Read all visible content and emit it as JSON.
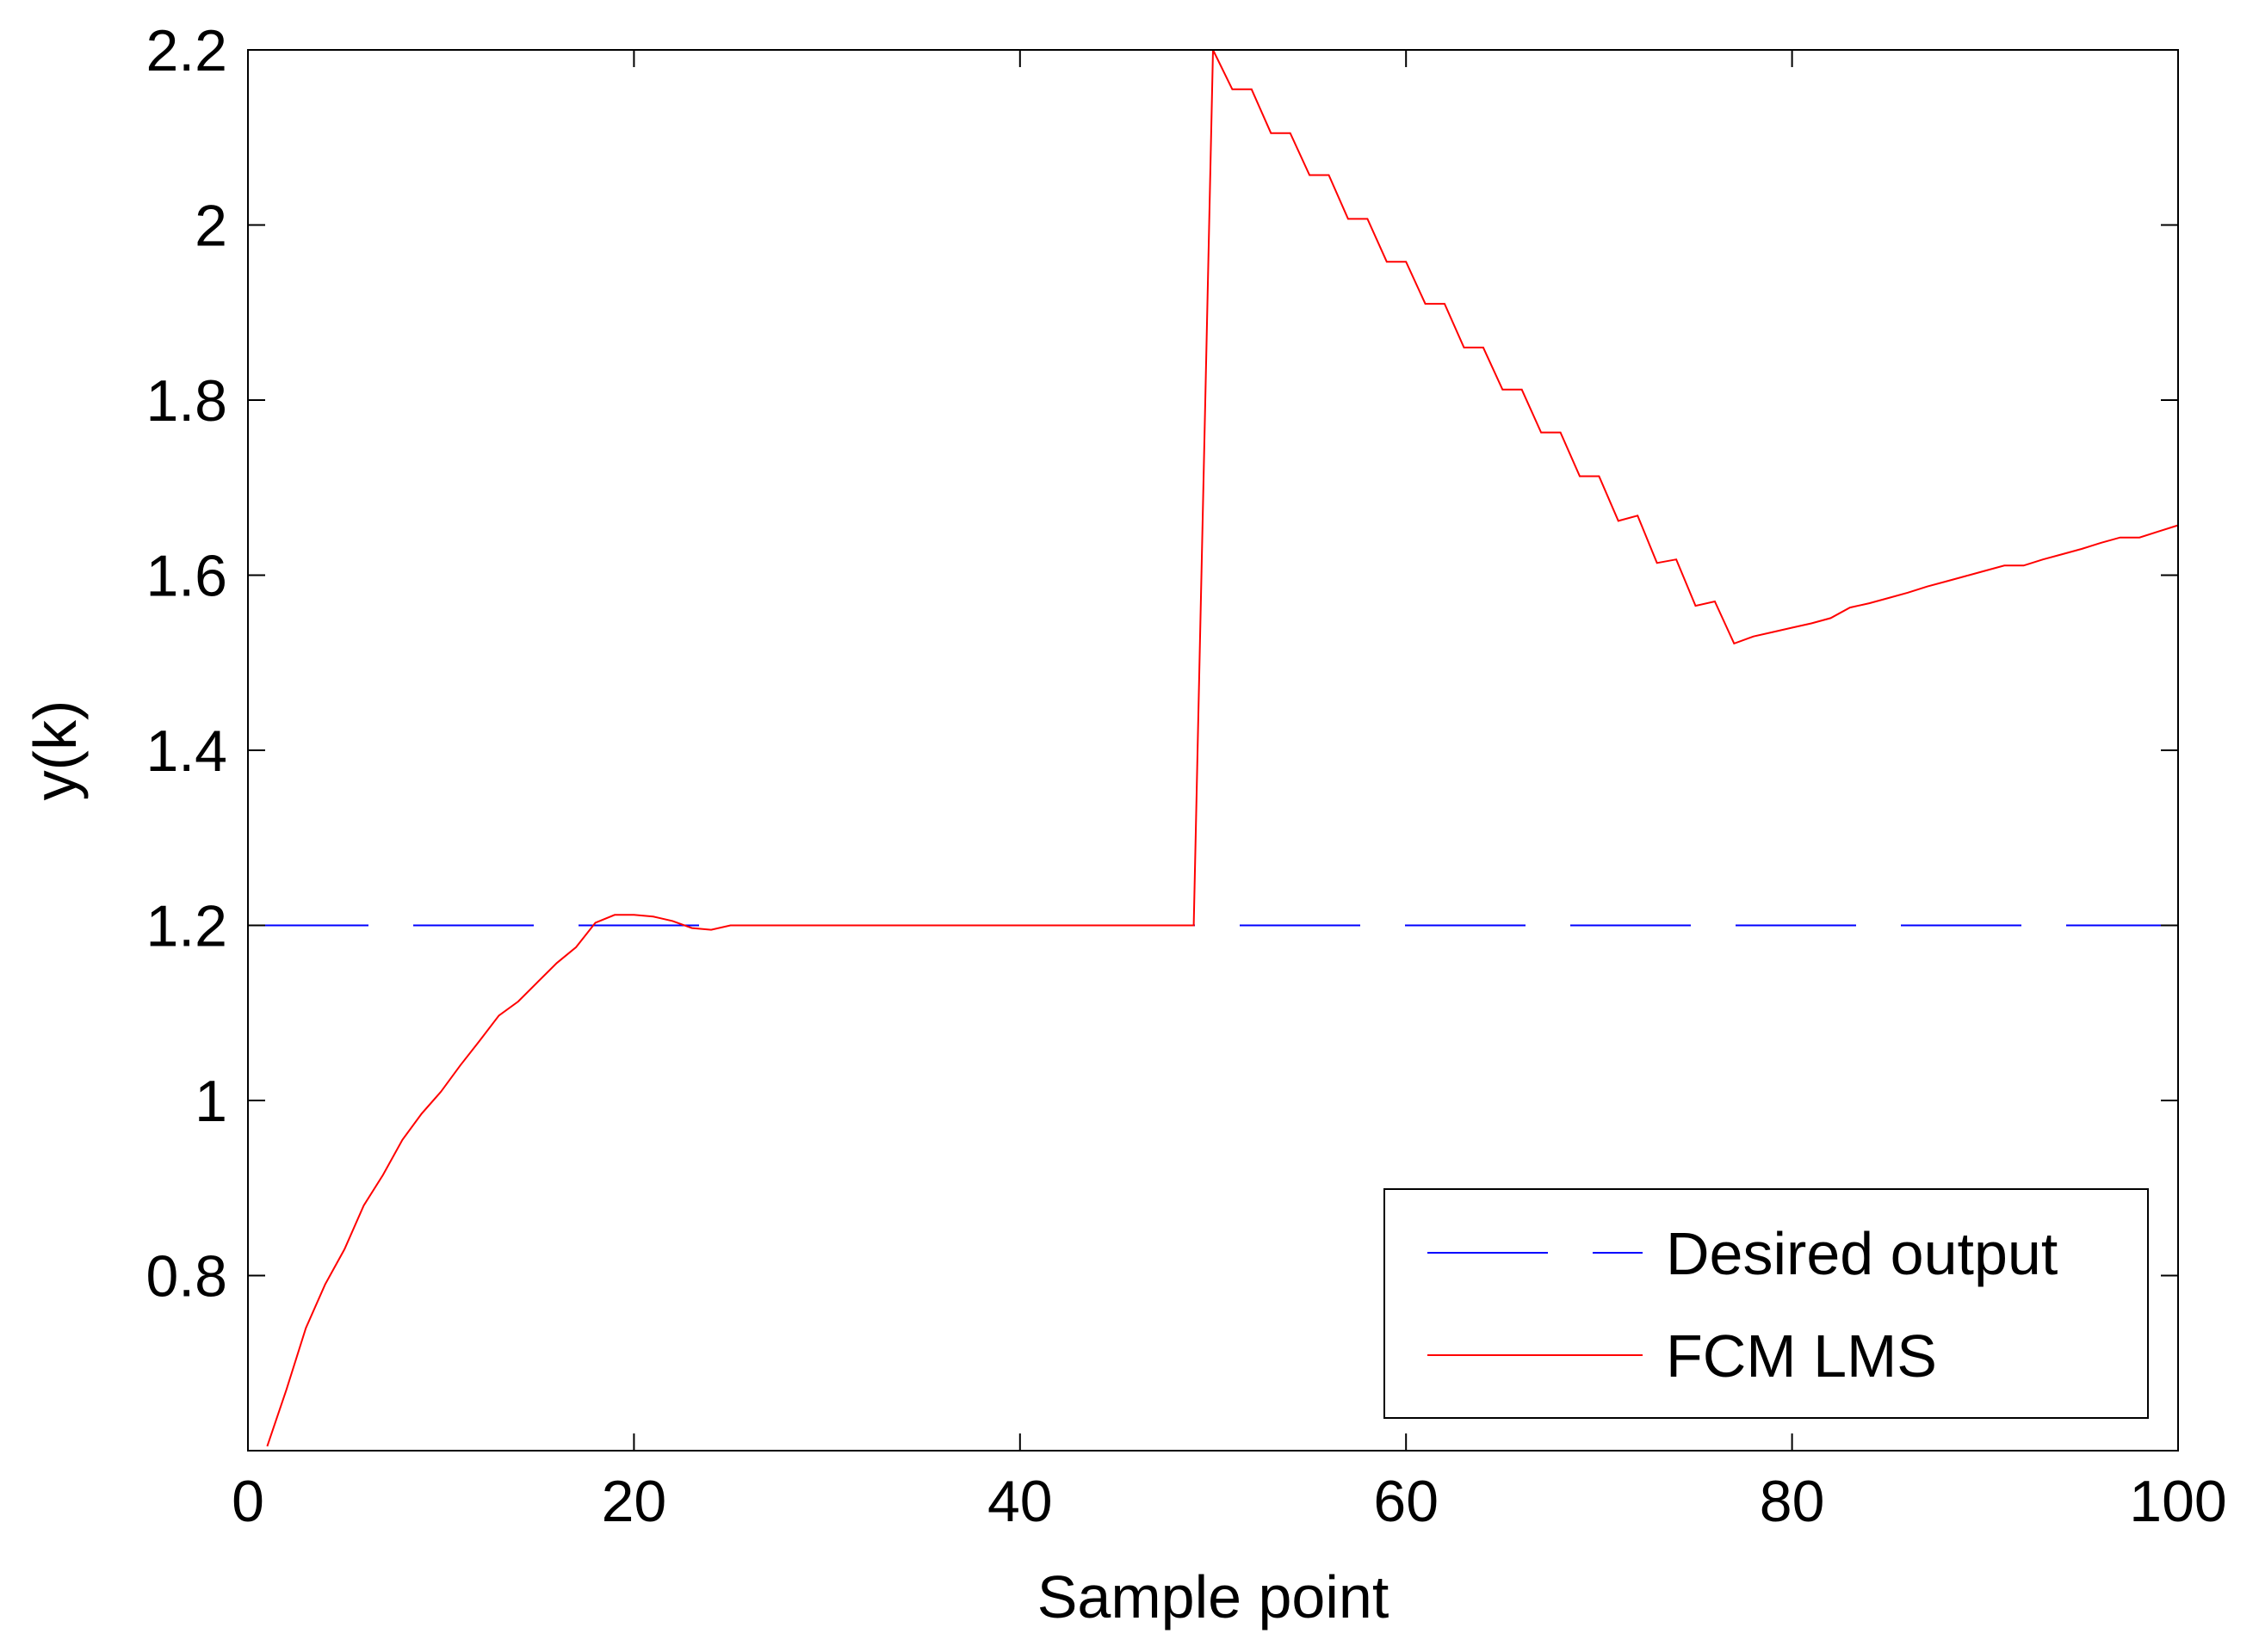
{
  "chart_data": {
    "type": "line",
    "xlabel": "Sample point",
    "ylabel": "y(k)",
    "xlim": [
      0,
      100
    ],
    "ylim": [
      0.6,
      2.2
    ],
    "xticks": [
      0,
      20,
      40,
      60,
      80,
      100
    ],
    "yticks": [
      0.8,
      1,
      1.2,
      1.4,
      1.6,
      1.8,
      2,
      2.2
    ],
    "xtick_labels": [
      "0",
      "20",
      "40",
      "60",
      "80",
      "100"
    ],
    "ytick_labels": [
      "0.8",
      "1",
      "1.2",
      "1.4",
      "1.6",
      "1.8",
      "2",
      "2.2"
    ],
    "grid": false,
    "legend_position": "bottom-right",
    "series": [
      {
        "name": "Desired output",
        "color": "#0000ff",
        "style": "dashed",
        "x": [
          0,
          100
        ],
        "y": [
          1.2,
          1.2
        ]
      },
      {
        "name": "FCM LMS",
        "color": "#ff0000",
        "style": "solid",
        "x": [
          1,
          2,
          3,
          4,
          5,
          6,
          7,
          8,
          9,
          10,
          11,
          12,
          13,
          14,
          15,
          16,
          17,
          18,
          19,
          20,
          21,
          22,
          23,
          24,
          25,
          26,
          27,
          28,
          29,
          30,
          31,
          32,
          33,
          34,
          35,
          36,
          37,
          38,
          39,
          40,
          41,
          42,
          43,
          44,
          45,
          46,
          47,
          48,
          49,
          50,
          51,
          52,
          53,
          54,
          55,
          56,
          57,
          58,
          59,
          60,
          61,
          62,
          63,
          64,
          65,
          66,
          67,
          68,
          69,
          70,
          71,
          72,
          73,
          74,
          75,
          76,
          77,
          78,
          79,
          80,
          81,
          82,
          83,
          84,
          85,
          86,
          87,
          88,
          89,
          90,
          91,
          92,
          93,
          94,
          95,
          96,
          97,
          98,
          99,
          100
        ],
        "y": [
          0.605,
          0.67,
          0.74,
          0.79,
          0.83,
          0.88,
          0.915,
          0.955,
          0.985,
          1.01,
          1.04,
          1.068,
          1.097,
          1.113,
          1.135,
          1.157,
          1.175,
          1.203,
          1.212,
          1.212,
          1.21,
          1.205,
          1.197,
          1.195,
          1.2,
          1.2,
          1.2,
          1.2,
          1.2,
          1.2,
          1.2,
          1.2,
          1.2,
          1.2,
          1.2,
          1.2,
          1.2,
          1.2,
          1.2,
          1.2,
          1.2,
          1.2,
          1.2,
          1.2,
          1.2,
          1.2,
          1.2,
          1.2,
          1.2,
          2.2,
          2.155,
          2.155,
          2.105,
          2.105,
          2.057,
          2.057,
          2.007,
          2.007,
          1.958,
          1.958,
          1.91,
          1.91,
          1.86,
          1.86,
          1.812,
          1.812,
          1.763,
          1.763,
          1.713,
          1.713,
          1.662,
          1.668,
          1.614,
          1.618,
          1.565,
          1.57,
          1.522,
          1.53,
          1.535,
          1.54,
          1.545,
          1.551,
          1.563,
          1.568,
          1.574,
          1.58,
          1.587,
          1.593,
          1.599,
          1.605,
          1.611,
          1.611,
          1.618,
          1.624,
          1.63,
          1.637,
          1.643,
          1.643,
          1.65,
          1.657
        ]
      }
    ]
  }
}
